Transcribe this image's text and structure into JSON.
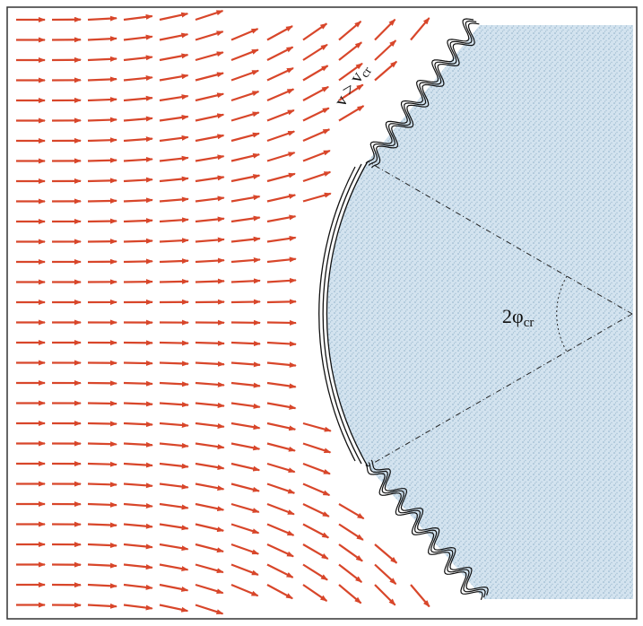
{
  "labels": {
    "velocity": {
      "main": "v > v",
      "sub": "cr"
    },
    "angle": {
      "main": "2φ",
      "sub": "cr"
    }
  }
}
